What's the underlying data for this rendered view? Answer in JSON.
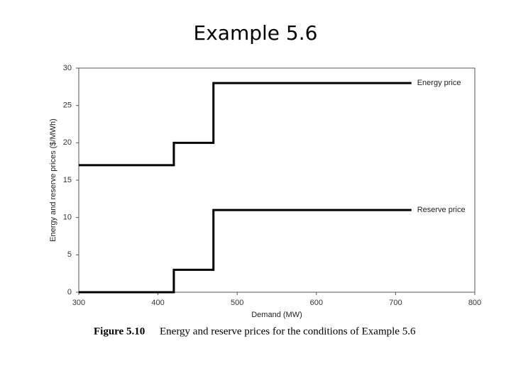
{
  "slide_title": "Example 5.6",
  "chart_data": {
    "type": "line",
    "xlabel": "Demand (MW)",
    "ylabel": "Energy and reserve prices ($/MWh)",
    "caption_label": "Figure 5.10",
    "caption": "Energy and reserve prices for the conditions of Example 5.6",
    "x": [
      300,
      420,
      420,
      470,
      470,
      720
    ],
    "series": [
      {
        "name": "Energy price",
        "color": "#000000",
        "values": [
          17,
          17,
          20,
          20,
          28,
          28
        ]
      },
      {
        "name": "Reserve price",
        "color": "#000000",
        "values": [
          0,
          0,
          3,
          3,
          11,
          11
        ]
      }
    ],
    "xlim": [
      300,
      800
    ],
    "xticks": [
      300,
      400,
      500,
      600,
      700,
      800
    ],
    "ylim": [
      0,
      30
    ],
    "yticks": [
      0,
      5,
      10,
      15,
      20,
      25,
      30
    ],
    "grid": false
  }
}
